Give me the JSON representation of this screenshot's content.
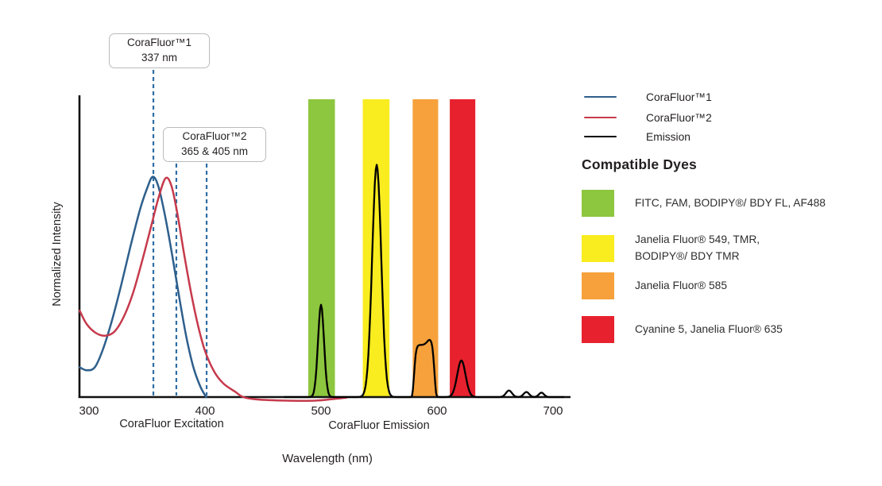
{
  "annotations": {
    "box1": {
      "line1": "CoraFluor™1",
      "line2": "337 nm"
    },
    "box2": {
      "line1": "CoraFluor™2",
      "line2": "365 & 405 nm"
    }
  },
  "axis": {
    "y_label": "Normalized Intensity",
    "x_label": "Wavelength (nm)",
    "excitation_label": "CoraFluor Excitation",
    "emission_label": "CoraFluor Emission"
  },
  "legend": {
    "items": [
      {
        "label": "CoraFluor™1",
        "color": "#2E5F8C"
      },
      {
        "label": "CoraFluor™2",
        "color": "#C63A4C"
      },
      {
        "label": "Emission",
        "color": "#000000"
      }
    ]
  },
  "dyes": {
    "heading": "Compatible Dyes",
    "items": [
      {
        "label": "FITC, FAM, BODIPY®/ BDY FL, AF488",
        "color": "#8DC63F"
      },
      {
        "label": "Janelia Fluor® 549, TMR,\nBODIPY®/ BDY TMR",
        "color": "#F9EC1F"
      },
      {
        "label": "Janelia Fluor® 585",
        "color": "#F6A13C"
      },
      {
        "label": "Cyanine 5, Janelia Fluor® 635",
        "color": "#E8212E"
      }
    ]
  },
  "chart_data": {
    "type": "line",
    "xlabel": "Wavelength (nm)",
    "ylabel": "Normalized Intensity",
    "x_ticks": [
      300,
      400,
      500,
      600,
      700
    ],
    "x_range": [
      292,
      712
    ],
    "y_range": [
      0,
      1
    ],
    "grid": false,
    "legend_position": "right",
    "series": [
      {
        "name": "CoraFluor™1",
        "color": "#2E5F8C",
        "points": [
          [
            292,
            0.1
          ],
          [
            298,
            0.09
          ],
          [
            305,
            0.1
          ],
          [
            312,
            0.16
          ],
          [
            320,
            0.26
          ],
          [
            328,
            0.38
          ],
          [
            336,
            0.51
          ],
          [
            344,
            0.63
          ],
          [
            350,
            0.7
          ],
          [
            355,
            0.74
          ],
          [
            360,
            0.705
          ],
          [
            366,
            0.6
          ],
          [
            372,
            0.47
          ],
          [
            378,
            0.33
          ],
          [
            384,
            0.2
          ],
          [
            390,
            0.1
          ],
          [
            396,
            0.035
          ],
          [
            401,
            0.0
          ]
        ]
      },
      {
        "name": "CoraFluor™2",
        "color": "#C63A4C",
        "points": [
          [
            292,
            0.29
          ],
          [
            298,
            0.245
          ],
          [
            306,
            0.215
          ],
          [
            314,
            0.206
          ],
          [
            322,
            0.22
          ],
          [
            330,
            0.27
          ],
          [
            338,
            0.35
          ],
          [
            346,
            0.46
          ],
          [
            354,
            0.58
          ],
          [
            360,
            0.67
          ],
          [
            366,
            0.735
          ],
          [
            371,
            0.71
          ],
          [
            376,
            0.62
          ],
          [
            382,
            0.48
          ],
          [
            388,
            0.35
          ],
          [
            394,
            0.24
          ],
          [
            400,
            0.155
          ],
          [
            408,
            0.085
          ],
          [
            416,
            0.045
          ],
          [
            426,
            0.018
          ],
          [
            433,
            0.0
          ],
          [
            445,
            -0.008
          ],
          [
            470,
            -0.012
          ],
          [
            495,
            -0.012
          ],
          [
            512,
            -0.006
          ],
          [
            522,
            -0.002
          ]
        ]
      }
    ],
    "emission": {
      "name": "Emission",
      "color": "#000000",
      "range_nm": [
        468,
        710
      ],
      "peaks": [
        {
          "center": 500,
          "height": 0.31,
          "sigma": 2.6,
          "shape": "gauss"
        },
        {
          "center": 548,
          "height": 0.78,
          "sigma": 3.9,
          "shape": "gauss"
        },
        {
          "center": 589,
          "height": 0.175,
          "sigma": 9,
          "shape": "flat"
        },
        {
          "center": 594,
          "height": 0.018,
          "sigma": 2.5,
          "shape": "gauss"
        },
        {
          "center": 621,
          "height": 0.123,
          "sigma": 3.6,
          "shape": "gauss"
        },
        {
          "center": 662,
          "height": 0.022,
          "sigma": 2.6,
          "shape": "gauss"
        },
        {
          "center": 677,
          "height": 0.017,
          "sigma": 2.4,
          "shape": "gauss"
        },
        {
          "center": 690,
          "height": 0.015,
          "sigma": 2.2,
          "shape": "gauss"
        }
      ]
    },
    "dye_bands": [
      {
        "nm": [
          489,
          512
        ],
        "color": "#8DC63F",
        "dyes": "FITC, FAM, BODIPY®/ BDY FL, AF488"
      },
      {
        "nm": [
          536,
          559
        ],
        "color": "#F9EC1F",
        "dyes": "Janelia Fluor® 549, TMR, BODIPY®/ BDY TMR"
      },
      {
        "nm": [
          579,
          601
        ],
        "color": "#F6A13C",
        "dyes": "Janelia Fluor® 585"
      },
      {
        "nm": [
          611,
          633
        ],
        "color": "#E8212E",
        "dyes": "Cyanine 5, Janelia Fluor® 635"
      }
    ],
    "excitation_markers": {
      "labels": [
        "337 nm",
        "365 nm",
        "405 nm"
      ],
      "nm": [
        355.5,
        375.3,
        401.4
      ],
      "color": "#2F6DA3"
    }
  }
}
